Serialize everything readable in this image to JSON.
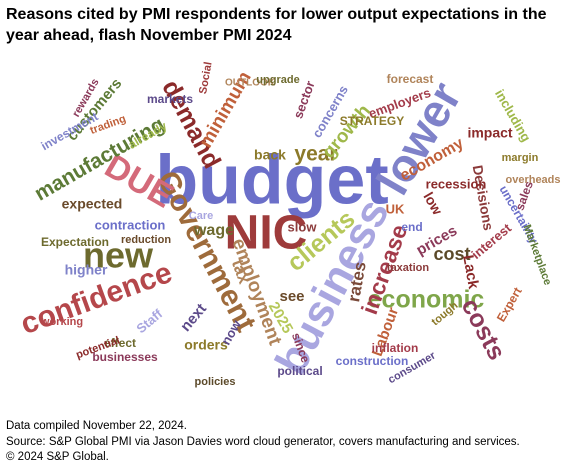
{
  "chart_data": {
    "type": "wordcloud",
    "title": "Reasons cited by PMI respondents for lower output expectations in the year ahead, flash November PMI 2024",
    "words": [
      {
        "text": "budget",
        "color": "#6b6fc9"
      },
      {
        "text": "NIC",
        "color": "#9e3b3b"
      },
      {
        "text": "business",
        "color": "#a9a6e0"
      },
      {
        "text": "lower",
        "color": "#7f82c9"
      },
      {
        "text": "Government",
        "color": "#9e6b3b"
      },
      {
        "text": "confidence",
        "color": "#b5474b"
      },
      {
        "text": "new",
        "color": "#6d6a2e"
      },
      {
        "text": "DUE",
        "color": "#d46a7a"
      },
      {
        "text": "manufacturing",
        "color": "#5c7a36"
      },
      {
        "text": "demand",
        "color": "#8b2a2a"
      },
      {
        "text": "economic",
        "color": "#7fa64a"
      },
      {
        "text": "costs",
        "color": "#8b3a5a"
      },
      {
        "text": "increase",
        "color": "#a33b4a"
      },
      {
        "text": "employment",
        "color": "#b0845a"
      },
      {
        "text": "clients",
        "color": "#b6c85a"
      },
      {
        "text": "year",
        "color": "#8c7a2a"
      },
      {
        "text": "rates",
        "color": "#7a4a3a"
      },
      {
        "text": "growth",
        "color": "#9fb84a"
      },
      {
        "text": "economy",
        "color": "#c0603a"
      },
      {
        "text": "Decisions",
        "color": "#8b3a3a"
      },
      {
        "text": "expected",
        "color": "#6a4a2a"
      },
      {
        "text": "contraction",
        "color": "#6b6fc9"
      },
      {
        "text": "higher",
        "color": "#7f82c9"
      },
      {
        "text": "cost",
        "color": "#5c4a2a"
      },
      {
        "text": "prices",
        "color": "#8b3a5a"
      },
      {
        "text": "Lack",
        "color": "#8b2a2a"
      },
      {
        "text": "Labour",
        "color": "#c0603a"
      },
      {
        "text": "orders",
        "color": "#8c7a2a"
      },
      {
        "text": "next",
        "color": "#5c4a8a"
      },
      {
        "text": "Staff",
        "color": "#a9a6e0"
      },
      {
        "text": "wage",
        "color": "#6d6a2e"
      },
      {
        "text": "tax",
        "color": "#b0845a"
      },
      {
        "text": "2025",
        "color": "#b6c85a"
      },
      {
        "text": "minimum",
        "color": "#c0603a"
      },
      {
        "text": "customers",
        "color": "#5c7a36"
      },
      {
        "text": "recession",
        "color": "#8b2a2a"
      },
      {
        "text": "interest",
        "color": "#a33b4a"
      },
      {
        "text": "sector",
        "color": "#8b3a5a"
      },
      {
        "text": "concerns",
        "color": "#7f82c9"
      },
      {
        "text": "impact",
        "color": "#8b2a2a"
      },
      {
        "text": "including",
        "color": "#9fb84a"
      },
      {
        "text": "businesses",
        "color": "#8b3a5a"
      },
      {
        "text": "construction",
        "color": "#6b6fc9"
      },
      {
        "text": "political",
        "color": "#5c4a8a"
      },
      {
        "text": "see",
        "color": "#6a4a2a"
      },
      {
        "text": "back",
        "color": "#8c7a2a"
      },
      {
        "text": "slow",
        "color": "#8b3a3a"
      },
      {
        "text": "effect",
        "color": "#6d6a2e"
      },
      {
        "text": "employers",
        "color": "#a33b4a"
      },
      {
        "text": "forecast",
        "color": "#b0845a"
      },
      {
        "text": "markets",
        "color": "#5c4a8a"
      },
      {
        "text": "STRATEGY",
        "color": "#8c7a2a"
      },
      {
        "text": "Social",
        "color": "#9e3b3b"
      },
      {
        "text": "OUTLOOK",
        "color": "#b0845a"
      },
      {
        "text": "uncertainty",
        "color": "#6b6fc9"
      },
      {
        "text": "Marketplace",
        "color": "#5c7a36"
      },
      {
        "text": "sales",
        "color": "#8b3a5a"
      },
      {
        "text": "Expert",
        "color": "#c0603a"
      },
      {
        "text": "inflation",
        "color": "#a33b4a"
      },
      {
        "text": "consumer",
        "color": "#5c4a8a"
      },
      {
        "text": "tough",
        "color": "#8c7a2a"
      },
      {
        "text": "taxation",
        "color": "#8b3a3a"
      },
      {
        "text": "investment",
        "color": "#7f82c9"
      },
      {
        "text": "Expectation",
        "color": "#6d6a2e"
      },
      {
        "text": "working",
        "color": "#b5474b"
      },
      {
        "text": "potential",
        "color": "#8b2a2a"
      },
      {
        "text": "reduction",
        "color": "#6a4a2a"
      },
      {
        "text": "policies",
        "color": "#5c4a2a"
      },
      {
        "text": "since",
        "color": "#8b3a5a"
      },
      {
        "text": "end",
        "color": "#6b6fc9"
      },
      {
        "text": "UK",
        "color": "#c0603a"
      },
      {
        "text": "low",
        "color": "#8b2a2a"
      },
      {
        "text": "now",
        "color": "#5c4a8a"
      },
      {
        "text": "already",
        "color": "#9fb84a"
      },
      {
        "text": "margin",
        "color": "#8c7a2a"
      },
      {
        "text": "overheads",
        "color": "#b0845a"
      },
      {
        "text": "Care",
        "color": "#a9a6e0"
      },
      {
        "text": "upgrade",
        "color": "#6d6a2e"
      },
      {
        "text": "rewards",
        "color": "#8b3a5a"
      },
      {
        "text": "trading",
        "color": "#c0603a"
      }
    ],
    "notes": [
      "Data compiled November 22, 2024.",
      "Source: S&P Global PMI via Jason Davies word cloud generator, covers manufacturing and services.",
      "© 2024 S&P Global."
    ]
  }
}
